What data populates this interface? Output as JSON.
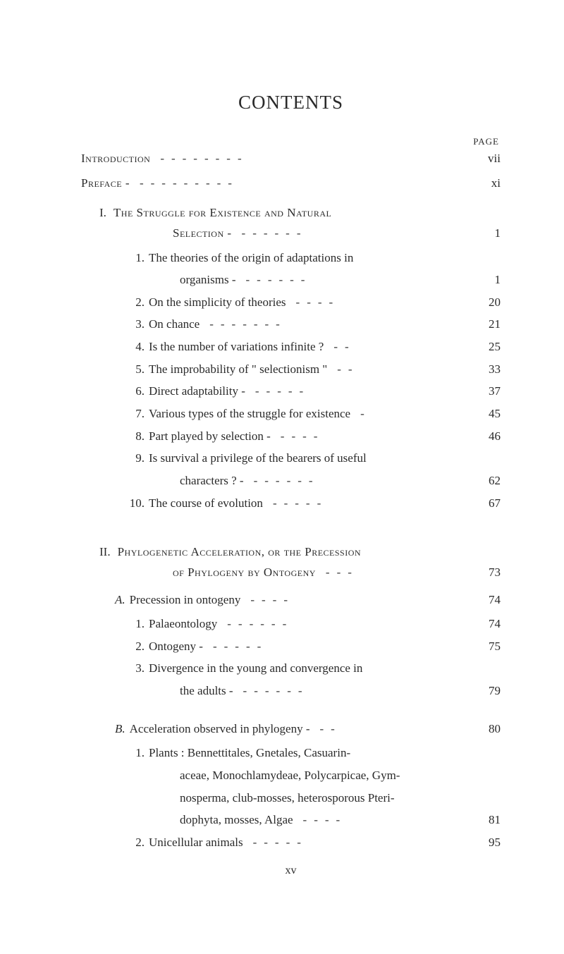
{
  "title": "CONTENTS",
  "page_label": "PAGE",
  "footer": "xv",
  "colors": {
    "background": "#ffffff",
    "text": "#2a2a2a",
    "dash": "#3a3a3a"
  },
  "rows": [
    {
      "type": "top",
      "smallcaps": true,
      "label": "Introduction",
      "page": "vii",
      "dashes": "--------"
    },
    {
      "type": "top",
      "smallcaps": true,
      "label": "Preface -",
      "page": "xi",
      "dashes": "---------"
    },
    {
      "type": "section",
      "roman": "I.",
      "label": "The Struggle for Existence and Natural"
    },
    {
      "type": "section-cont",
      "label": "Selection -",
      "page": "1",
      "dashes": "------"
    },
    {
      "type": "item",
      "num": "1.",
      "label": "The theories of the origin of adaptations in"
    },
    {
      "type": "item-cont",
      "label": "organisms -",
      "page": "1",
      "dashes": "------"
    },
    {
      "type": "item",
      "num": "2.",
      "label": "On the simplicity of theories",
      "page": "20",
      "dashes": "----"
    },
    {
      "type": "item",
      "num": "3.",
      "label": "On chance",
      "page": "21",
      "dashes": "-------"
    },
    {
      "type": "item",
      "num": "4.",
      "label": "Is the number of variations infinite ?",
      "page": "25",
      "dashes": "--"
    },
    {
      "type": "item",
      "num": "5.",
      "label": "The improbability of \" selectionism \"",
      "page": "33",
      "dashes": "--"
    },
    {
      "type": "item",
      "num": "6.",
      "label": "Direct adaptability -",
      "page": "37",
      "dashes": "-----"
    },
    {
      "type": "item",
      "num": "7.",
      "label": "Various types of the struggle for existence",
      "page": "45",
      "dashes": "-"
    },
    {
      "type": "item",
      "num": "8.",
      "label": "Part played by selection -",
      "page": "46",
      "dashes": "----"
    },
    {
      "type": "item",
      "num": "9.",
      "label": "Is survival a privilege of the bearers of useful"
    },
    {
      "type": "item-cont",
      "label": "characters ? -",
      "page": "62",
      "dashes": "------"
    },
    {
      "type": "item",
      "num": "10.",
      "label": "The course of evolution",
      "page": "67",
      "dashes": "-----"
    },
    {
      "type": "gap"
    },
    {
      "type": "section",
      "roman": "II.",
      "label": "Phylogenetic Acceleration, or the Precession"
    },
    {
      "type": "section-cont",
      "label": "of Phylogeny by Ontogeny",
      "page": "73",
      "dashes": "---"
    },
    {
      "type": "sub",
      "letter": "A.",
      "label": "Precession in ontogeny",
      "page": "74",
      "dashes": "----"
    },
    {
      "type": "subitem",
      "num": "1.",
      "label": "Palaeontology",
      "page": "74",
      "dashes": "------"
    },
    {
      "type": "subitem",
      "num": "2.",
      "label": "Ontogeny    -",
      "page": "75",
      "dashes": "-----"
    },
    {
      "type": "subitem",
      "num": "3.",
      "label": "Divergence in the young and convergence in"
    },
    {
      "type": "subitem-cont",
      "label": "the adults -",
      "page": "79",
      "dashes": "------"
    },
    {
      "type": "midgap"
    },
    {
      "type": "sub",
      "letter": "B.",
      "label": "Acceleration observed in phylogeny -",
      "page": "80",
      "dashes": "--"
    },
    {
      "type": "subitem",
      "num": "1.",
      "label": "Plants :   Bennettitales,   Gnetales,   Casuarin-"
    },
    {
      "type": "subitem-cont2",
      "label": "aceae, Monochlamydeae, Polycarpicae, Gym-"
    },
    {
      "type": "subitem-cont2",
      "label": "nosperma, club-mosses, heterosporous Pteri-"
    },
    {
      "type": "subitem-cont2",
      "label": "dophyta, mosses, Algae",
      "page": "81",
      "dashes": "----"
    },
    {
      "type": "subitem",
      "num": "2.",
      "label": "Unicellular animals",
      "page": "95",
      "dashes": "-----"
    }
  ]
}
